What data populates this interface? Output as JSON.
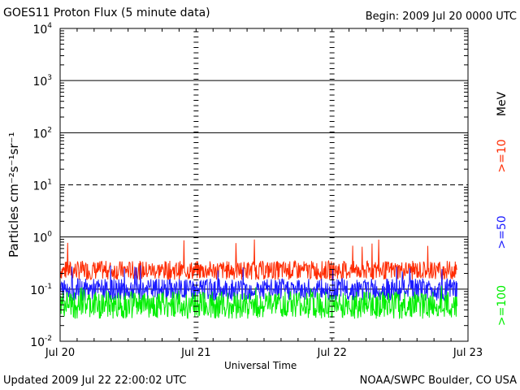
{
  "chart_data": {
    "type": "line",
    "title": "GOES11 Proton Flux (5 minute data)",
    "begin": "Begin: 2009 Jul 20 0000 UTC",
    "xlabel": "Universal Time",
    "ylabel": "Particles cm⁻²s⁻¹sr⁻¹",
    "yscale": "log",
    "ylim": [
      0.01,
      10000
    ],
    "y_ticks": [
      {
        "base": "10",
        "exp": "4"
      },
      {
        "base": "10",
        "exp": "3"
      },
      {
        "base": "10",
        "exp": "2"
      },
      {
        "base": "10",
        "exp": "1"
      },
      {
        "base": "10",
        "exp": "0"
      },
      {
        "base": "10",
        "exp": "-1"
      },
      {
        "base": "10",
        "exp": "-2"
      }
    ],
    "x_ticks": [
      "Jul 20",
      "Jul 21",
      "Jul 22",
      "Jul 23"
    ],
    "xlim_days": [
      0,
      3
    ],
    "data_end_day": 2.92,
    "energy_unit": "MeV",
    "series": [
      {
        "name": ">=10",
        "color": "#ff2a00",
        "level_min": 0.15,
        "level_max": 0.35,
        "peak": 0.9
      },
      {
        "name": ">=50",
        "color": "#1a1aff",
        "level_min": 0.06,
        "level_max": 0.16,
        "peak": 0.3
      },
      {
        "name": ">=100",
        "color": "#00ee00",
        "level_min": 0.027,
        "level_max": 0.09,
        "peak": 0.12
      }
    ]
  },
  "footer": {
    "updated": "Updated 2009 Jul 22 22:00:02 UTC",
    "credit": "NOAA/SWPC Boulder, CO USA"
  }
}
